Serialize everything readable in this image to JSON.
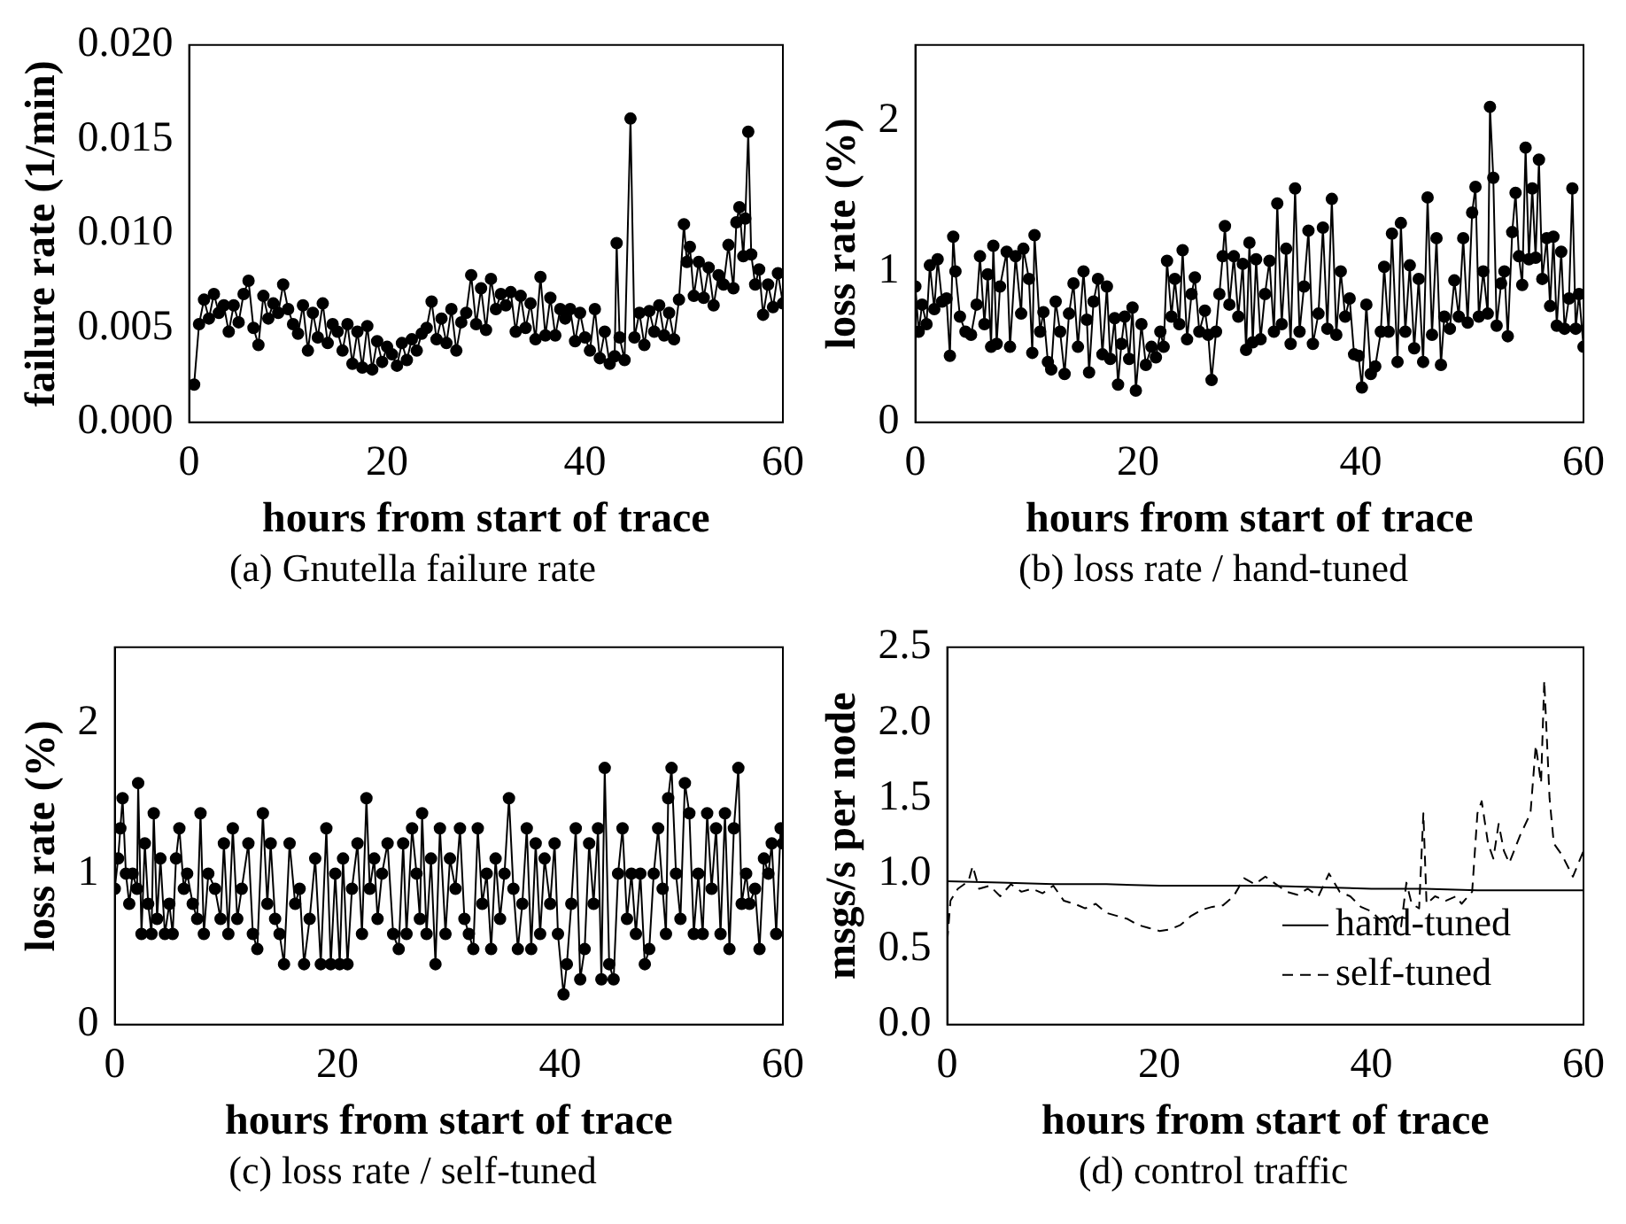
{
  "chart_data": [
    {
      "type": "line",
      "xlabel": "hours from start of trace",
      "ylabel": "failure rate (1/min)",
      "annotations": [
        "(a) Gnutella failure rate"
      ],
      "xlim": [
        0,
        60
      ],
      "xticks": [
        0,
        20,
        40,
        60
      ],
      "ylim": [
        0,
        0.02
      ],
      "yticks": [
        {
          "value": 0,
          "label": "0.000"
        },
        {
          "value": 0.005,
          "label": "0.005"
        },
        {
          "value": 0.01,
          "label": "0.010"
        },
        {
          "value": 0.015,
          "label": "0.015"
        },
        {
          "value": 0.02,
          "label": "0.020"
        }
      ],
      "marker": "circle",
      "color": "#000000",
      "x": [
        0.5,
        1,
        1.5,
        2,
        2.5,
        3,
        3.5,
        4,
        4.5,
        5,
        5.5,
        6,
        6.5,
        7,
        7.5,
        8,
        8.5,
        9,
        9.5,
        10,
        10.5,
        11,
        11.5,
        12,
        12.5,
        13,
        13.5,
        14,
        14.5,
        15,
        15.5,
        16,
        16.5,
        17,
        17.5,
        18,
        18.5,
        19,
        19.5,
        20,
        20.5,
        21,
        21.5,
        22,
        22.5,
        23,
        23.5,
        24,
        24.5,
        25,
        25.5,
        26,
        26.5,
        27,
        27.5,
        28,
        28.5,
        29,
        29.5,
        30,
        30.5,
        31,
        31.5,
        32,
        32.5,
        33,
        33.5,
        34,
        34.5,
        35,
        35.5,
        36,
        36.5,
        37,
        37.5,
        38,
        38.5,
        39,
        39.5,
        40,
        40.5,
        41,
        41.5,
        42,
        42.5,
        43,
        43.2,
        43.5,
        44,
        44.6,
        45,
        45.5,
        46,
        46.5,
        47,
        47.5,
        48,
        48.5,
        49,
        49.5,
        50,
        50.3,
        50.6,
        51,
        51.5,
        52,
        52.5,
        53,
        53.5,
        54,
        54.5,
        55,
        55.3,
        55.6,
        56,
        56.2,
        56.5,
        56.8,
        57.2,
        57.6,
        58,
        58.5,
        59,
        59.5,
        60
      ],
      "values": [
        0.002,
        0.0052,
        0.0065,
        0.0055,
        0.0068,
        0.0058,
        0.0062,
        0.0048,
        0.0062,
        0.0053,
        0.0068,
        0.0075,
        0.005,
        0.0041,
        0.0067,
        0.0055,
        0.0063,
        0.0058,
        0.0073,
        0.006,
        0.0052,
        0.0047,
        0.0062,
        0.0038,
        0.0058,
        0.0045,
        0.0063,
        0.0042,
        0.0052,
        0.0048,
        0.0038,
        0.0052,
        0.0031,
        0.0048,
        0.0029,
        0.0051,
        0.0028,
        0.0043,
        0.0032,
        0.004,
        0.0036,
        0.003,
        0.0042,
        0.0033,
        0.0044,
        0.0038,
        0.0047,
        0.005,
        0.0064,
        0.0044,
        0.0055,
        0.0042,
        0.006,
        0.0038,
        0.0053,
        0.0058,
        0.0078,
        0.0052,
        0.0071,
        0.0049,
        0.0076,
        0.006,
        0.0068,
        0.0062,
        0.0069,
        0.0048,
        0.0067,
        0.005,
        0.0063,
        0.0044,
        0.0077,
        0.0046,
        0.0066,
        0.0046,
        0.006,
        0.0055,
        0.006,
        0.0043,
        0.0058,
        0.0045,
        0.0038,
        0.006,
        0.0034,
        0.0048,
        0.0031,
        0.0035,
        0.0095,
        0.0045,
        0.0033,
        0.0161,
        0.0045,
        0.0058,
        0.0041,
        0.0059,
        0.0048,
        0.0062,
        0.0046,
        0.0058,
        0.0044,
        0.0065,
        0.0105,
        0.0085,
        0.0093,
        0.0067,
        0.0085,
        0.0066,
        0.0082,
        0.0062,
        0.0078,
        0.0073,
        0.0094,
        0.0071,
        0.0106,
        0.0114,
        0.0088,
        0.0108,
        0.0154,
        0.0089,
        0.0073,
        0.0081,
        0.0057,
        0.0073,
        0.0061,
        0.0079,
        0.0063
      ]
    },
    {
      "type": "line",
      "xlabel": "hours from start of trace",
      "ylabel": "loss rate (%)",
      "annotations": [
        "(b) loss rate / hand-tuned"
      ],
      "xlim": [
        0,
        60
      ],
      "xticks": [
        0,
        20,
        40,
        60
      ],
      "ylim": [
        0,
        2.5
      ],
      "yticks": [
        0,
        1,
        2
      ],
      "marker": "circle",
      "color": "#000000",
      "x": [
        0,
        0.3,
        0.6,
        1,
        1.3,
        1.7,
        2,
        2.4,
        2.8,
        3.1,
        3.4,
        3.6,
        4,
        4.5,
        5,
        5.5,
        5.8,
        6.2,
        6.5,
        6.8,
        7,
        7.3,
        7.6,
        8.2,
        8.5,
        9,
        9.5,
        9.7,
        10.2,
        10.5,
        10.7,
        11.2,
        11.5,
        11.9,
        12.2,
        12.6,
        13,
        13.4,
        13.8,
        14.2,
        14.6,
        15.1,
        15.4,
        15.6,
        16,
        16.4,
        16.8,
        17.2,
        17.5,
        17.9,
        18.2,
        18.5,
        18.8,
        19.2,
        19.5,
        19.8,
        20.3,
        20.7,
        21.2,
        21.6,
        22,
        22.3,
        22.6,
        23,
        23.3,
        23.7,
        24,
        24.4,
        24.8,
        25.1,
        25.5,
        26,
        26.3,
        26.6,
        27,
        27.3,
        27.6,
        27.8,
        28.2,
        28.6,
        29,
        29.4,
        29.7,
        30,
        30.3,
        30.6,
        31,
        31.4,
        31.8,
        32.2,
        32.5,
        32.9,
        33.3,
        33.7,
        34.1,
        34.5,
        34.9,
        35.3,
        35.7,
        36.2,
        36.6,
        37,
        37.4,
        37.8,
        38.2,
        38.6,
        39,
        39.4,
        39.8,
        40.1,
        40.5,
        40.9,
        41.3,
        41.8,
        42.1,
        42.5,
        42.8,
        43.3,
        43.6,
        44,
        44.4,
        44.8,
        45.2,
        45.6,
        46,
        46.4,
        46.8,
        47.2,
        47.5,
        48,
        48.4,
        48.8,
        49.2,
        49.6,
        50,
        50.3,
        50.6,
        51,
        51.4,
        51.6,
        51.9,
        52.2,
        52.6,
        52.9,
        53.2,
        53.6,
        53.9,
        54.2,
        54.5,
        54.8,
        55.1,
        55.4,
        55.7,
        56,
        56.3,
        56.7,
        57,
        57.3,
        57.6,
        58,
        58.3,
        58.7,
        59,
        59.3,
        59.6,
        60
      ],
      "values": [
        0.9,
        0.6,
        0.78,
        0.65,
        1.04,
        0.75,
        1.08,
        0.8,
        0.82,
        0.44,
        1.23,
        1.0,
        0.7,
        0.6,
        0.58,
        0.78,
        1.1,
        0.65,
        0.98,
        0.5,
        1.17,
        0.52,
        0.9,
        1.13,
        0.5,
        1.1,
        0.72,
        1.15,
        0.95,
        0.46,
        1.24,
        0.6,
        0.73,
        0.4,
        0.35,
        0.8,
        0.6,
        0.32,
        0.72,
        0.92,
        0.5,
        1.0,
        0.68,
        0.33,
        0.8,
        0.95,
        0.45,
        0.9,
        0.42,
        0.69,
        0.25,
        0.52,
        0.7,
        0.42,
        0.76,
        0.21,
        0.65,
        0.38,
        0.5,
        0.43,
        0.6,
        0.5,
        1.07,
        0.7,
        0.95,
        0.65,
        1.14,
        0.55,
        0.85,
        0.96,
        0.6,
        0.74,
        0.58,
        0.28,
        0.6,
        0.85,
        1.1,
        1.3,
        0.78,
        1.1,
        0.7,
        1.05,
        0.48,
        1.19,
        0.53,
        1.08,
        0.55,
        0.85,
        1.07,
        0.6,
        1.45,
        0.65,
        1.15,
        0.52,
        1.55,
        0.6,
        0.9,
        1.27,
        0.52,
        0.72,
        1.29,
        0.62,
        1.48,
        0.58,
        1.0,
        0.7,
        0.82,
        0.45,
        0.44,
        0.23,
        0.78,
        0.32,
        0.37,
        0.6,
        1.03,
        0.6,
        1.25,
        0.4,
        1.32,
        0.6,
        1.04,
        0.49,
        0.95,
        0.4,
        1.49,
        0.58,
        1.22,
        0.38,
        0.7,
        0.62,
        0.94,
        0.7,
        1.22,
        0.66,
        1.39,
        1.56,
        0.7,
        1.0,
        0.72,
        2.09,
        1.62,
        0.64,
        0.92,
        1.0,
        0.57,
        1.26,
        1.52,
        1.1,
        0.91,
        1.82,
        1.08,
        1.55,
        1.09,
        1.74,
        0.95,
        1.22,
        0.77,
        1.23,
        0.64,
        1.13,
        0.62,
        0.82,
        1.55,
        0.62,
        0.85,
        0.5
      ]
    },
    {
      "type": "line",
      "xlabel": "hours from start of trace",
      "ylabel": "loss rate (%)",
      "annotations": [
        "(c) loss rate / self-tuned"
      ],
      "xlim": [
        0,
        60
      ],
      "xticks": [
        0,
        20,
        40,
        60
      ],
      "ylim": [
        0,
        2.5
      ],
      "yticks": [
        0,
        1,
        2
      ],
      "marker": "circle",
      "color": "#000000",
      "x": [
        0,
        0.3,
        0.5,
        0.7,
        1,
        1.3,
        1.6,
        2,
        2.1,
        2.4,
        2.7,
        3,
        3.3,
        3.5,
        3.8,
        4.1,
        4.5,
        4.9,
        5.2,
        5.5,
        5.8,
        6.2,
        6.5,
        7,
        7.4,
        7.7,
        8,
        8.4,
        9,
        9.5,
        9.8,
        10.2,
        10.6,
        11,
        11.4,
        12,
        12.4,
        12.8,
        13.3,
        13.7,
        14,
        14.4,
        14.8,
        15.2,
        15.7,
        16.2,
        16.6,
        17,
        17.5,
        18,
        18.5,
        19,
        19.4,
        19.8,
        20.2,
        20.5,
        20.9,
        21.3,
        21.8,
        22.2,
        22.6,
        22.9,
        23.3,
        23.6,
        24,
        24.5,
        25,
        25.5,
        25.9,
        26.2,
        26.7,
        27.1,
        27.4,
        27.6,
        28,
        28.4,
        28.8,
        29.2,
        29.7,
        30.1,
        30.6,
        31,
        31.4,
        31.8,
        32.2,
        32.6,
        33,
        33.4,
        33.8,
        34.2,
        34.6,
        35,
        35.4,
        35.8,
        36.2,
        36.6,
        37,
        37.4,
        37.8,
        38.2,
        38.6,
        39.1,
        39.5,
        39.8,
        40.3,
        40.6,
        41,
        41.4,
        41.8,
        42.2,
        42.6,
        43,
        43.4,
        43.7,
        44,
        44.4,
        44.8,
        45.2,
        45.6,
        46,
        46.4,
        46.8,
        47.2,
        47.6,
        48,
        48.4,
        48.8,
        49.2,
        49.5,
        49.7,
        50,
        50.4,
        50.8,
        51.2,
        51.6,
        52,
        52.4,
        52.8,
        53.2,
        53.6,
        54,
        54.4,
        54.8,
        55.2,
        55.6,
        56,
        56.3,
        56.7,
        57,
        57.5,
        57.9,
        58.3,
        58.7,
        59,
        59.4,
        59.8,
        60
      ],
      "values": [
        0.9,
        1.1,
        1.3,
        1.5,
        1.0,
        0.8,
        1.0,
        0.9,
        1.6,
        0.6,
        1.2,
        0.8,
        0.6,
        1.4,
        0.7,
        1.1,
        0.6,
        0.8,
        0.6,
        1.1,
        1.3,
        0.9,
        1.0,
        0.8,
        0.7,
        1.4,
        0.6,
        1.0,
        0.9,
        0.7,
        1.2,
        0.6,
        1.3,
        0.7,
        0.9,
        1.2,
        0.6,
        0.5,
        1.4,
        0.8,
        1.2,
        0.7,
        0.6,
        0.4,
        1.2,
        0.8,
        0.9,
        0.4,
        0.7,
        1.1,
        0.4,
        1.3,
        0.4,
        1.0,
        0.4,
        1.1,
        0.4,
        0.9,
        1.2,
        0.6,
        1.5,
        0.9,
        1.1,
        0.7,
        1.0,
        1.2,
        0.6,
        0.5,
        1.2,
        0.6,
        1.3,
        1.0,
        0.7,
        1.4,
        0.6,
        1.1,
        0.4,
        1.3,
        0.6,
        1.1,
        0.9,
        1.3,
        0.7,
        0.6,
        0.5,
        1.3,
        0.8,
        1.0,
        0.5,
        1.1,
        0.7,
        1.0,
        1.5,
        0.9,
        0.5,
        0.8,
        1.3,
        0.5,
        1.2,
        0.6,
        1.1,
        0.8,
        1.2,
        0.6,
        0.2,
        0.4,
        0.8,
        1.3,
        0.3,
        0.5,
        1.2,
        0.8,
        1.3,
        0.3,
        1.7,
        0.4,
        0.3,
        1.0,
        1.3,
        0.7,
        1.0,
        0.6,
        1.0,
        0.4,
        0.5,
        1.0,
        1.3,
        0.9,
        0.6,
        1.5,
        1.7,
        1.0,
        0.7,
        1.6,
        1.4,
        0.6,
        1.0,
        0.6,
        1.4,
        0.9,
        1.3,
        0.6,
        1.4,
        0.5,
        1.3,
        1.7,
        0.8,
        1.0,
        0.8,
        0.9,
        0.5,
        1.1,
        1.0,
        1.2,
        0.6,
        1.3,
        1.2
      ]
    },
    {
      "type": "line",
      "xlabel": "hours from start of trace",
      "ylabel": "msgs/s per node",
      "annotations": [
        "(d) control traffic"
      ],
      "xlim": [
        0,
        60
      ],
      "xticks": [
        0,
        20,
        40,
        60
      ],
      "ylim": [
        0,
        2.5
      ],
      "yticks": [
        {
          "value": 0,
          "label": "0.0"
        },
        {
          "value": 0.5,
          "label": "0.5"
        },
        {
          "value": 1,
          "label": "1.0"
        },
        {
          "value": 1.5,
          "label": "1.5"
        },
        {
          "value": 2,
          "label": "2.0"
        },
        {
          "value": 2.5,
          "label": "2.5"
        }
      ],
      "marker": "none",
      "legend": "bottom right",
      "series": [
        {
          "name": "hand-tuned",
          "color": "#000000",
          "line_style": "solid",
          "x": [
            0,
            5,
            10,
            15,
            20,
            25,
            30,
            35,
            40,
            45,
            50,
            55,
            60
          ],
          "values": [
            0.95,
            0.94,
            0.93,
            0.93,
            0.92,
            0.92,
            0.92,
            0.91,
            0.9,
            0.9,
            0.89,
            0.89,
            0.89
          ]
        },
        {
          "name": "self-tuned",
          "color": "#000000",
          "line_style": "dashed",
          "x": [
            0,
            0.3,
            1,
            2,
            2.4,
            3,
            4,
            5,
            6,
            7,
            8,
            9,
            10,
            11,
            12,
            13,
            14,
            15,
            16,
            17,
            18,
            19,
            20,
            21,
            22,
            23,
            24,
            25,
            26,
            27,
            28,
            29,
            30,
            31,
            32,
            33,
            34,
            35,
            36,
            37,
            38,
            39,
            40,
            41,
            42,
            42.8,
            43.3,
            43.8,
            44.5,
            44.9,
            45.2,
            46,
            47,
            48,
            48.5,
            49.5,
            50,
            50.4,
            51,
            51.5,
            52,
            52.5,
            53,
            54,
            55,
            55.5,
            56,
            56.3,
            56.8,
            57.2,
            58,
            59,
            60
          ],
          "values": [
            0.55,
            0.82,
            0.9,
            0.95,
            1.05,
            0.9,
            0.92,
            0.85,
            0.93,
            0.88,
            0.9,
            0.87,
            0.92,
            0.82,
            0.8,
            0.77,
            0.8,
            0.74,
            0.72,
            0.7,
            0.66,
            0.64,
            0.62,
            0.63,
            0.66,
            0.72,
            0.76,
            0.78,
            0.79,
            0.85,
            0.97,
            0.93,
            0.98,
            0.93,
            0.88,
            0.86,
            0.9,
            0.85,
            1.0,
            0.88,
            0.85,
            0.78,
            0.75,
            0.68,
            0.72,
            0.65,
            0.94,
            0.8,
            0.77,
            1.4,
            0.8,
            0.85,
            0.82,
            0.85,
            0.8,
            0.88,
            1.4,
            1.48,
            1.2,
            1.1,
            1.33,
            1.15,
            1.07,
            1.25,
            1.4,
            1.85,
            1.6,
            2.28,
            1.5,
            1.2,
            1.12,
            0.98,
            1.15
          ]
        }
      ]
    }
  ]
}
